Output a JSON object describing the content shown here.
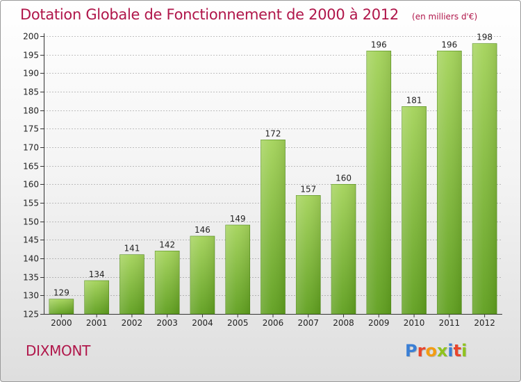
{
  "header": {
    "title": "Dotation Globale de Fonctionnement de 2000 à 2012",
    "unit": "(en milliers d'€)"
  },
  "footer": {
    "commune": "DIXMONT",
    "logo_text": "Proxiti",
    "logo_colors": [
      "#3a7fd5",
      "#e8452c",
      "#f39c12",
      "#8fc31f",
      "#3a7fd5",
      "#e8452c",
      "#8fc31f"
    ]
  },
  "colors": {
    "title": "#b0164a",
    "bar_light": "#a4d35a",
    "bar_dark": "#5f9f1e",
    "grid": "#555555",
    "axis": "#333333"
  },
  "chart_data": {
    "type": "bar",
    "title": "Dotation Globale de Fonctionnement de 2000 à 2012",
    "subtitle": "(en milliers d'€)",
    "xlabel": "",
    "ylabel": "",
    "categories": [
      "2000",
      "2001",
      "2002",
      "2003",
      "2004",
      "2005",
      "2006",
      "2007",
      "2008",
      "2009",
      "2010",
      "2011",
      "2012"
    ],
    "values": [
      129,
      134,
      141,
      142,
      146,
      149,
      172,
      157,
      160,
      196,
      181,
      196,
      198
    ],
    "ylim": [
      125,
      200
    ],
    "yticks": [
      125,
      130,
      135,
      140,
      145,
      150,
      155,
      160,
      165,
      170,
      175,
      180,
      185,
      190,
      195,
      200
    ],
    "grid": true,
    "grid_style": "dashed horizontal",
    "legend": "none",
    "data_labels": true
  }
}
